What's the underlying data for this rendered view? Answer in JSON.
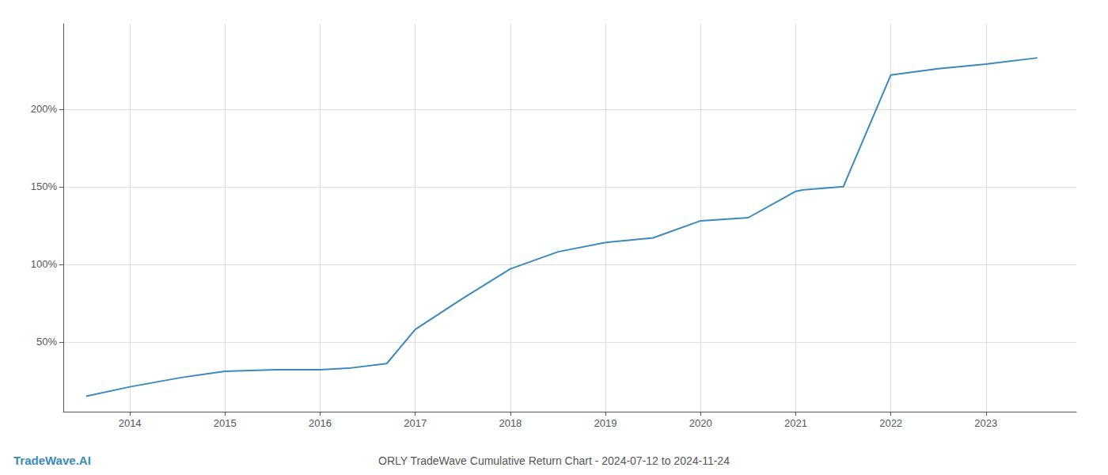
{
  "chart_data": {
    "type": "line",
    "title": "ORLY TradeWave Cumulative Return Chart - 2024-07-12 to 2024-11-24",
    "annotations": [
      "TradeWave.AI"
    ],
    "x": [
      2013.54,
      2014.0,
      2014.54,
      2015.0,
      2015.54,
      2016.0,
      2016.3,
      2016.7,
      2017.0,
      2017.5,
      2018.0,
      2018.5,
      2019.0,
      2019.5,
      2020.0,
      2020.5,
      2021.0,
      2021.08,
      2021.5,
      2022.0,
      2022.5,
      2023.0,
      2023.54
    ],
    "values": [
      15,
      21,
      27,
      31,
      32,
      32,
      33,
      36,
      58,
      78,
      97,
      108,
      114,
      117,
      128,
      130,
      147,
      148,
      150,
      222,
      226,
      229,
      233
    ],
    "color": "#3a8abf",
    "xlim": [
      2013.3,
      2023.95
    ],
    "xticks": [
      2014,
      2015,
      2016,
      2017,
      2018,
      2019,
      2020,
      2021,
      2022,
      2023
    ],
    "ylim": [
      5,
      255
    ],
    "yticks": [
      {
        "value": 50,
        "label": "50%"
      },
      {
        "value": 100,
        "label": "100%"
      },
      {
        "value": 150,
        "label": "150%"
      },
      {
        "value": 200,
        "label": "200%"
      }
    ],
    "grid": true
  }
}
